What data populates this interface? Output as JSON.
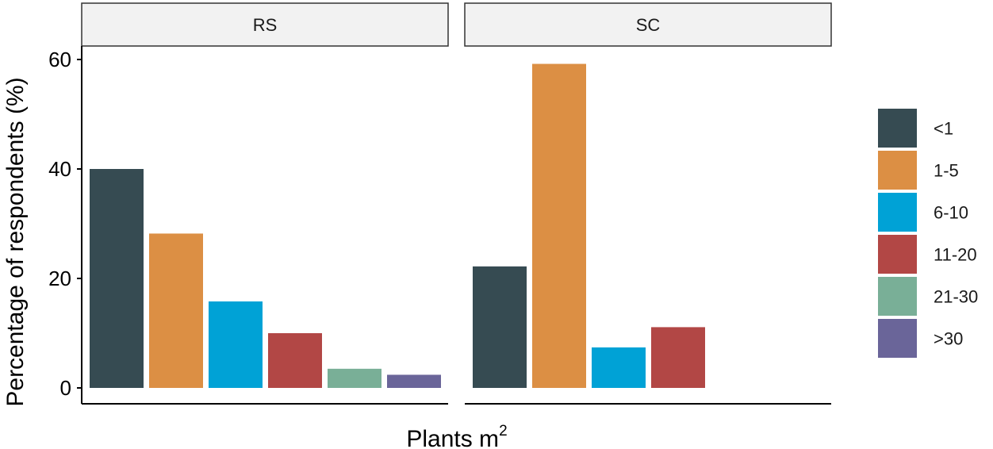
{
  "chart_data": {
    "type": "bar",
    "ylabel": "Percentage of respondents (%)",
    "xlabel": "Plants m",
    "xlabel_superscript": "2",
    "ylim": [
      0,
      62
    ],
    "yticks": [
      0,
      20,
      40,
      60
    ],
    "categories": [
      "<1",
      "1-5",
      "6-10",
      "11-20",
      "21-30",
      ">30"
    ],
    "colors": [
      "#364B52",
      "#DC8F44",
      "#00A2D6",
      "#B24745",
      "#79AF97",
      "#6A6599"
    ],
    "legend_position": "right",
    "grid": false,
    "panels": [
      {
        "name": "RS",
        "values": [
          40.0,
          28.2,
          15.8,
          10.0,
          3.5,
          2.4
        ]
      },
      {
        "name": "SC",
        "values": [
          22.2,
          59.2,
          7.4,
          11.1,
          null,
          null
        ]
      }
    ]
  }
}
